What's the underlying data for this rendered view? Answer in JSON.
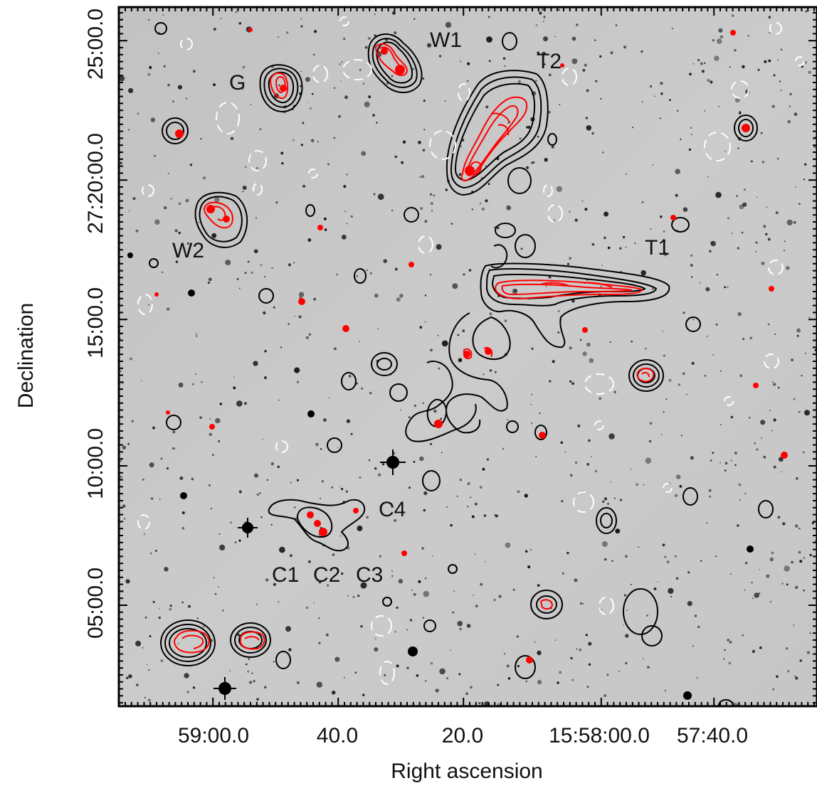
{
  "figure": {
    "x_axis_title": "Right ascension",
    "y_axis_title": "Declination",
    "x_ticks": [
      "59:00.0",
      "40.0",
      "20.0",
      "15:58:00.0",
      "57:40.0"
    ],
    "y_ticks": [
      "25:00.0",
      "27:20:00.0",
      "15:00.0",
      "10:00.0",
      "05:00.0"
    ],
    "source_labels": [
      "W1",
      "T2",
      "G",
      "W2",
      "T1",
      "C4",
      "C1",
      "C2",
      "C3"
    ],
    "colors": {
      "frame": "#000000",
      "background_sky": "#c9c9c9",
      "contour_black": "#000000",
      "contour_red": "#ff0000",
      "contour_white_dashed": "#ffffff"
    }
  }
}
